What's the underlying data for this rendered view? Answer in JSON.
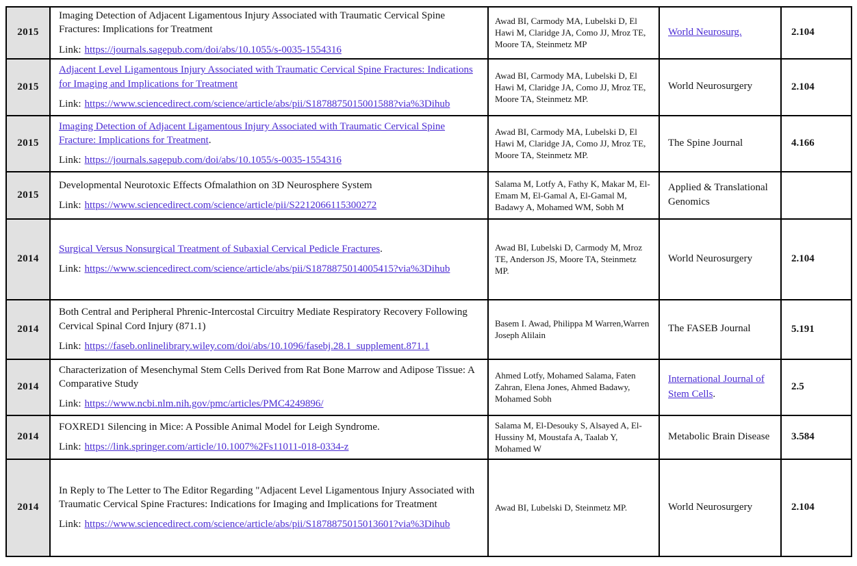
{
  "page": {
    "background_color": "#ffffff",
    "link_color": "#4a2bd3",
    "year_column_bg": "#e1e1e1",
    "border_color": "#000000"
  },
  "table": {
    "link_label": "Link:",
    "columns": [
      "year",
      "title_and_link",
      "authors",
      "journal",
      "impact_factor"
    ],
    "rows": [
      {
        "year": "2015",
        "title": "Imaging Detection of Adjacent Ligamentous Injury Associated with Traumatic Cervical Spine Fractures: Implications for Treatment",
        "title_is_link": false,
        "title_suffix": "",
        "url": "https://journals.sagepub.com/doi/abs/10.1055/s-0035-1554316",
        "authors": "Awad BI, Carmody MA, Lubelski D, El Hawi M, Claridge JA, Como JJ, Mroz TE, Moore TA, Steinmetz MP",
        "journal": "World Neurosurg.",
        "journal_is_link": true,
        "journal_suffix": "",
        "impact_factor": "2.104"
      },
      {
        "year": "2015",
        "title": "Adjacent Level Ligamentous Injury Associated with Traumatic Cervical Spine Fractures: Indications for Imaging and Implications for Treatment",
        "title_is_link": true,
        "title_suffix": "",
        "url": "https://www.sciencedirect.com/science/article/abs/pii/S1878875015001588?via%3Dihub",
        "authors": "Awad BI, Carmody MA, Lubelski D, El Hawi M, Claridge JA, Como JJ, Mroz TE, Moore TA, Steinmetz MP.",
        "journal": "World Neurosurgery",
        "journal_is_link": false,
        "journal_suffix": "",
        "impact_factor": "2.104"
      },
      {
        "year": "2015",
        "title": "Imaging Detection of Adjacent Ligamentous Injury Associated with Traumatic Cervical Spine Fracture: Implications for Treatment",
        "title_is_link": true,
        "title_suffix": ".",
        "url": "https://journals.sagepub.com/doi/abs/10.1055/s-0035-1554316",
        "authors": "Awad BI, Carmody MA, Lubelski D, El Hawi M, Claridge JA, Como JJ, Mroz TE, Moore TA, Steinmetz MP.",
        "journal": "The Spine Journal",
        "journal_is_link": false,
        "journal_suffix": "",
        "impact_factor": "4.166"
      },
      {
        "year": "2015",
        "title": "Developmental Neurotoxic Effects Ofmalathion on 3D Neurosphere System",
        "title_is_link": false,
        "title_suffix": "",
        "url": "https://www.sciencedirect.com/science/article/pii/S2212066115300272",
        "authors": "Salama M, Lotfy A, Fathy K, Makar M, El-Emam M, El-Gamal A, El-Gamal M, Badawy A, Mohamed WM, Sobh M",
        "journal": "Applied & Translational Genomics",
        "journal_is_link": false,
        "journal_suffix": "",
        "impact_factor": ""
      },
      {
        "year": "2014",
        "title": "Surgical Versus Nonsurgical Treatment of Subaxial Cervical Pedicle Fractures",
        "title_is_link": true,
        "title_suffix": ".",
        "url": "https://www.sciencedirect.com/science/article/abs/pii/S1878875014005415?via%3Dihub",
        "authors": "Awad BI, Lubelski D, Carmody M, Mroz TE, Anderson JS, Moore TA, Steinmetz MP.",
        "journal": "World Neurosurgery",
        "journal_is_link": false,
        "journal_suffix": "",
        "impact_factor": "2.104"
      },
      {
        "year": "2014",
        "title": "Both Central and Peripheral Phrenic-Intercostal Circuitry Mediate Respiratory Recovery Following Cervical Spinal Cord Injury (871.1)",
        "title_is_link": false,
        "title_suffix": "",
        "url": "https://faseb.onlinelibrary.wiley.com/doi/abs/10.1096/fasebj.28.1_supplement.871.1",
        "authors": "Basem I. Awad, Philippa M Warren,Warren Joseph Alilain",
        "journal": "The FASEB Journal",
        "journal_is_link": false,
        "journal_suffix": "",
        "impact_factor": "5.191"
      },
      {
        "year": "2014",
        "title": "Characterization of Mesenchymal Stem Cells Derived from Rat Bone Marrow and Adipose Tissue: A Comparative Study",
        "title_is_link": false,
        "title_suffix": "",
        "url": "https://www.ncbi.nlm.nih.gov/pmc/articles/PMC4249896/",
        "authors": "Ahmed Lotfy, Mohamed Salama, Faten Zahran, Elena Jones, Ahmed Badawy, Mohamed Sobh",
        "journal": "International Journal of Stem Cells",
        "journal_is_link": true,
        "journal_suffix": ".",
        "impact_factor": "2.5"
      },
      {
        "year": "2014",
        "title": "FOXRED1 Silencing in Mice: A Possible Animal Model for Leigh Syndrome.",
        "title_is_link": false,
        "title_suffix": "",
        "url": "https://link.springer.com/article/10.1007%2Fs11011-018-0334-z",
        "authors": "Salama M, El-Desouky S, Alsayed A, El-Hussiny M, Moustafa A, Taalab Y, Mohamed W",
        "journal": "Metabolic Brain Disease",
        "journal_is_link": false,
        "journal_suffix": "",
        "impact_factor": "3.584"
      },
      {
        "year": "2014",
        "title": "In Reply to The Letter to The Editor Regarding \"Adjacent Level Ligamentous Injury Associated with Traumatic Cervical Spine Fractures: Indications for Imaging and Implications for Treatment",
        "title_is_link": false,
        "title_suffix": "",
        "url": "https://www.sciencedirect.com/science/article/abs/pii/S1878875015013601?via%3Dihub",
        "authors": "Awad BI, Lubelski D, Steinmetz MP.",
        "journal": "World Neurosurgery",
        "journal_is_link": false,
        "journal_suffix": "",
        "impact_factor": "2.104"
      }
    ]
  }
}
